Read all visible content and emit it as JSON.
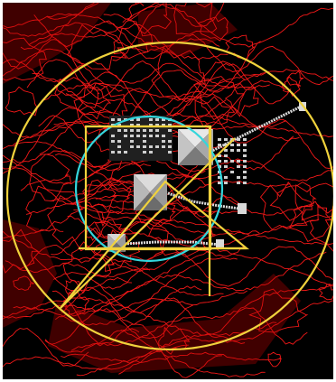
{
  "map": {
    "background_color": "#000000",
    "contour_color": "#ff1a1a",
    "overlay_primary_color": "#f0d23c",
    "overlay_secondary_color": "#33d6dc",
    "structure_color": "#d9d9d9",
    "pyramids": [
      "great-pyramid",
      "second-pyramid",
      "third-pyramid"
    ],
    "overlay_shapes": [
      "outer-circle",
      "inner-circle",
      "square",
      "triangle",
      "diagonal-line",
      "horizontal-line",
      "vertical-line"
    ]
  }
}
